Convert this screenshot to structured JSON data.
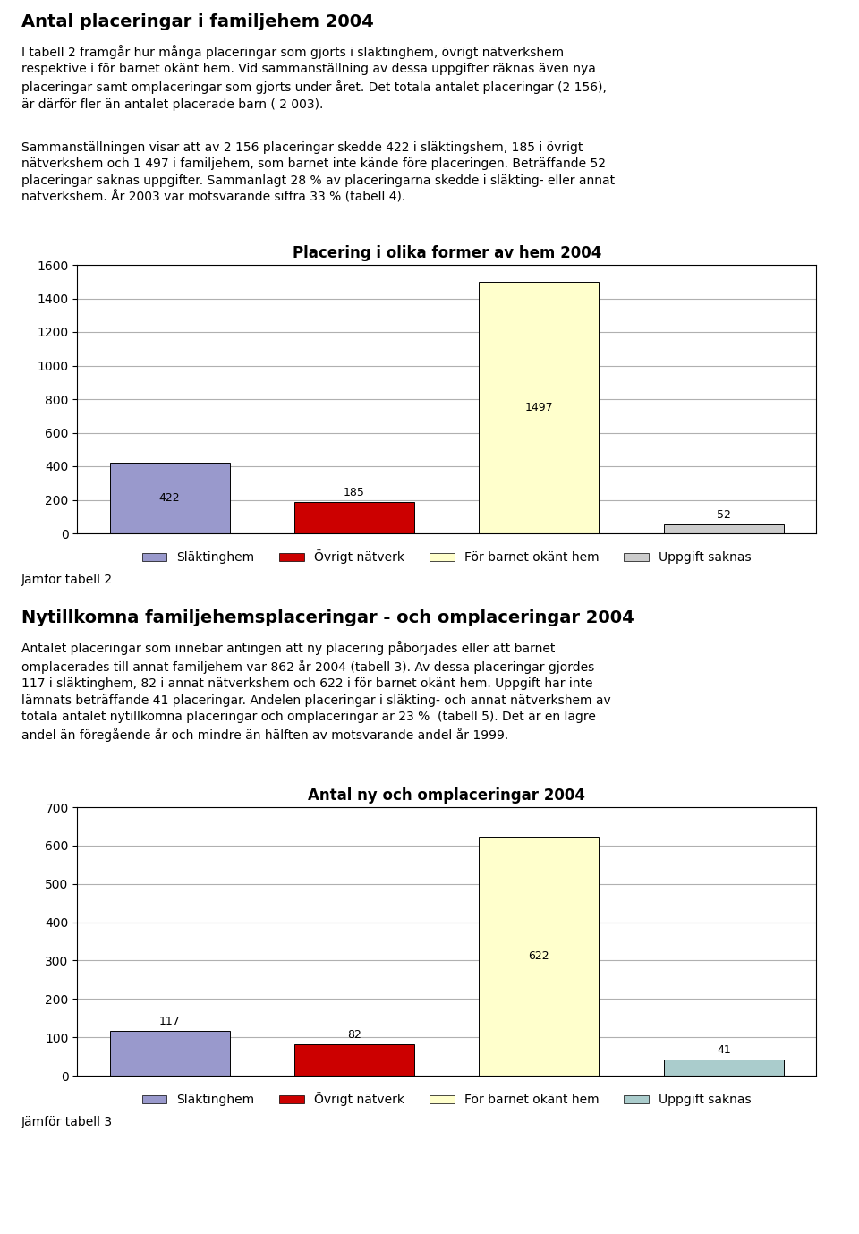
{
  "chart_data": [
    {
      "type": "bar",
      "title": "Placering i olika former av hem 2004",
      "categories": [
        "Släktinghem",
        "Övrigt nätverk",
        "För barnet okänt hem",
        "Uppgift saknas"
      ],
      "values": [
        422,
        185,
        1497,
        52
      ],
      "colors": [
        "#9999cc",
        "#cc0000",
        "#ffffcc",
        "#cccccc"
      ],
      "ylim": [
        0,
        1600
      ],
      "yticks": [
        0,
        200,
        400,
        600,
        800,
        1000,
        1200,
        1400,
        1600
      ],
      "grid": true,
      "legend": "upper center",
      "data_labels": true,
      "tick_labels": "y",
      "annotations": [
        "Antal placeringar i familjehem 2004",
        "I tabell 2 framgår hur många placeringar som gjorts i släktinghem, övrigt nätverkshem\nrespektive i för barnet okänt hem. Vid sammanställning av dessa uppgifter räknas även nya\nplaceringar samt omplaceringar som gjorts under året. Det totala antalet placeringar (2 156),\när därför fler än antalet placerade barn ( 2 003).",
        "Sammanställningen visar att av 2 156 placeringar skedde 422 i släktingshem, 185 i övrigt\nnätverkshem och 1 497 i familjehem, som barnet inte kände före placeringen. Beträffande 52\nplaceringar saknas uppgifter. Sammanlagt 28 % av placeringarna skedde i släkting- eller annat\nnätverkshem. År 2003 var motsvarande siffra 33 % (tabell 4).",
        "Jämför tabell 2"
      ]
    },
    {
      "type": "bar",
      "title": "Antal ny och omplaceringar 2004",
      "categories": [
        "Släktinghem",
        "Övrigt nätverk",
        "För barnet okänt hem",
        "Uppgift saknas"
      ],
      "values": [
        117,
        82,
        622,
        41
      ],
      "colors": [
        "#9999cc",
        "#cc0000",
        "#ffffcc",
        "#aacccc"
      ],
      "ylim": [
        0,
        700
      ],
      "yticks": [
        0,
        100,
        200,
        300,
        400,
        500,
        600,
        700
      ],
      "grid": true,
      "legend": "upper center",
      "data_labels": true,
      "tick_labels": "y",
      "annotations": [
        "Nytillkomna familjehemsplaceringar - och omplaceringar 2004",
        "Antalet placeringar som innebar antingen att ny placering påbörjades eller att barnet\nomplacerades till annat familjehem var 862 år 2004 (tabell 3). Av dessa placeringar gjordes\n117 i släktinghem, 82 i annat nätverkshem och 622 i för barnet okänt hem. Uppgift har inte\nlämnats beträffande 41 placeringar. Andelen placeringar i släkting- och annat nätverkshem av\ntotala antalet nytillkomna placeringar och omplaceringar är 23 %  (tabell 5). Det är en lägre\nandel än föregående år och mindre än hälften av motsvarande andel år 1999.",
        "Jämför tabell 3"
      ]
    }
  ]
}
